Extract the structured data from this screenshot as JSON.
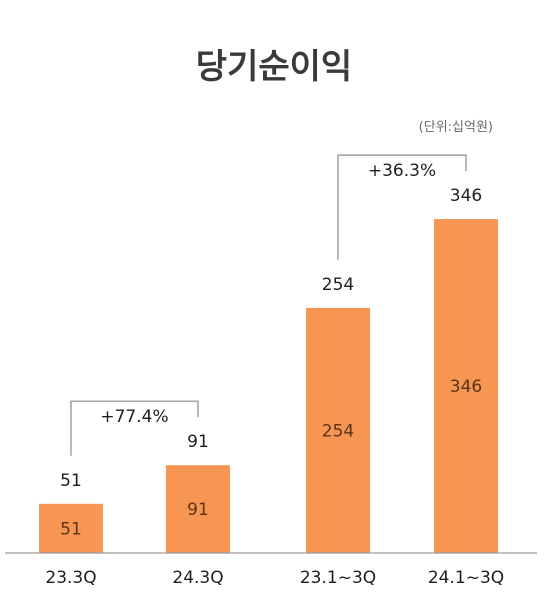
{
  "chart_data": {
    "type": "bar",
    "title": "당기순이익",
    "unit_note": "(단위:십억원)",
    "categories": [
      "23.3Q",
      "24.3Q",
      "23.1~3Q",
      "24.1~3Q"
    ],
    "values": [
      51,
      91,
      254,
      346
    ],
    "bar_color": "#F79552",
    "annotations": [
      {
        "text": "+77.4%",
        "from": "23.3Q",
        "to": "24.3Q"
      },
      {
        "text": "+36.3%",
        "from": "23.1~3Q",
        "to": "24.1~3Q"
      }
    ],
    "grid": false
  }
}
